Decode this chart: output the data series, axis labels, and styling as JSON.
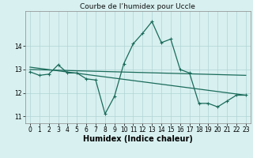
{
  "title": "Courbe de l’humidex pour Uccle",
  "xlabel": "Humidex (Indice chaleur)",
  "x": [
    0,
    1,
    2,
    3,
    4,
    5,
    6,
    7,
    8,
    9,
    10,
    11,
    12,
    13,
    14,
    15,
    16,
    17,
    18,
    19,
    20,
    21,
    22,
    23
  ],
  "y_main": [
    12.9,
    12.75,
    12.8,
    13.2,
    12.85,
    12.85,
    12.6,
    12.55,
    11.1,
    11.85,
    13.25,
    14.1,
    14.55,
    15.05,
    14.15,
    14.3,
    13.0,
    12.85,
    11.55,
    11.55,
    11.4,
    11.65,
    11.9,
    11.9
  ],
  "y_trend1_start": 12.9,
  "y_trend1_end": 12.75,
  "y_trend2_start": 13.1,
  "y_trend2_end": 11.9,
  "line_color": "#1a6b5a",
  "marker": "+",
  "markersize": 3.5,
  "linewidth": 0.9,
  "bg_color": "#d8f0f0",
  "grid_color": "#b0d4d4",
  "xlim": [
    -0.5,
    23.5
  ],
  "ylim": [
    10.7,
    15.5
  ],
  "yticks": [
    11,
    12,
    13,
    14
  ],
  "xticks": [
    0,
    1,
    2,
    3,
    4,
    5,
    6,
    7,
    8,
    9,
    10,
    11,
    12,
    13,
    14,
    15,
    16,
    17,
    18,
    19,
    20,
    21,
    22,
    23
  ],
  "tick_fontsize": 5.5,
  "xlabel_fontsize": 7.0,
  "title_fontsize": 6.5
}
